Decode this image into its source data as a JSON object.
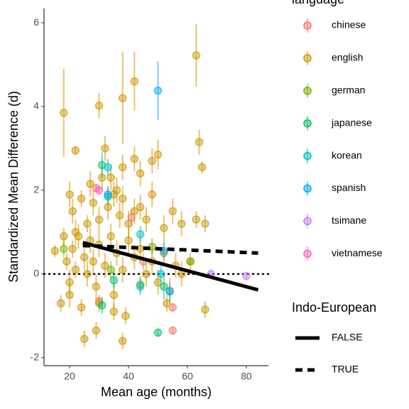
{
  "chart_data": {
    "type": "scatter",
    "x_label": "Mean age (months)",
    "y_label": "Standardized Mean Difference (d)",
    "xlim": [
      11.3,
      87.5
    ],
    "ylim": [
      -2.19,
      6.34
    ],
    "xticks": [
      20,
      40,
      60,
      80
    ],
    "yticks": [
      -2,
      0,
      2,
      4,
      6
    ],
    "hline": 0,
    "legend_title": "language",
    "series": [
      {
        "name": "chinese",
        "color": "#F8766D",
        "x": [
          29,
          41,
          55,
          55,
          30,
          45
        ],
        "values": [
          2.05,
          1.35,
          -1.35,
          -0.8,
          -0.65,
          0.3
        ],
        "errors": [
          0.1,
          0.2,
          0.1,
          0.1,
          0.1,
          0.2
        ]
      },
      {
        "name": "english",
        "color": "#CD9600",
        "x": [
          18,
          22,
          30,
          38,
          42,
          63,
          64,
          65,
          32,
          38,
          42,
          44,
          48,
          50,
          20,
          21,
          24,
          26,
          28,
          30,
          33,
          35,
          37,
          38,
          40,
          42,
          44,
          46,
          48,
          52,
          55,
          58,
          63,
          66,
          15,
          18,
          19,
          20,
          21,
          22,
          23,
          25,
          26,
          27,
          28,
          29,
          30,
          32,
          34,
          35,
          36,
          38,
          40,
          42,
          44,
          46,
          48,
          50,
          52,
          54,
          56,
          58,
          61,
          17,
          20,
          25,
          29,
          35,
          38,
          39,
          24,
          30,
          53,
          66,
          22,
          27,
          31,
          36,
          34
        ],
        "values": [
          3.85,
          2.95,
          4.02,
          4.2,
          4.6,
          5.22,
          3.15,
          2.55,
          3.0,
          2.55,
          2.75,
          2.4,
          2.7,
          2.85,
          1.9,
          1.5,
          1.8,
          1.2,
          1.7,
          1.3,
          1.6,
          1.9,
          1.4,
          1.8,
          1.2,
          1.5,
          1.6,
          1.3,
          1.9,
          1.1,
          1.5,
          1.2,
          1.3,
          1.2,
          0.55,
          0.9,
          0.3,
          -0.2,
          0.6,
          0.1,
          0.9,
          0.4,
          0.0,
          0.8,
          0.3,
          -0.3,
          0.7,
          0.2,
          0.9,
          -0.5,
          0.5,
          0.1,
          0.8,
          0.4,
          0.6,
          0.0,
          0.3,
          -0.2,
          0.5,
          -0.4,
          0.2,
          0.0,
          0.3,
          -0.7,
          -0.5,
          -1.55,
          -1.35,
          -0.9,
          -1.6,
          -1.0,
          -0.8,
          -0.7,
          -0.7,
          -0.85,
          1.0,
          2.15,
          2.3,
          2.0,
          2.3
        ],
        "errors": [
          1.05,
          0.1,
          0.3,
          1.1,
          0.7,
          0.75,
          0.3,
          0.15,
          0.3,
          0.3,
          0.3,
          0.3,
          0.3,
          0.35,
          0.3,
          0.3,
          0.2,
          0.2,
          0.3,
          0.3,
          0.3,
          0.3,
          0.3,
          0.3,
          0.3,
          0.3,
          0.3,
          0.3,
          0.3,
          0.3,
          0.3,
          0.3,
          0.2,
          0.2,
          0.15,
          0.2,
          0.2,
          0.3,
          0.2,
          0.2,
          0.3,
          0.3,
          0.3,
          0.3,
          0.3,
          0.3,
          0.3,
          0.3,
          0.3,
          0.3,
          0.3,
          0.3,
          0.3,
          0.3,
          0.3,
          0.3,
          0.3,
          0.3,
          0.3,
          0.3,
          0.3,
          0.3,
          0.2,
          0.2,
          0.3,
          0.2,
          0.2,
          0.2,
          0.2,
          0.2,
          0.2,
          0.2,
          0.2,
          0.2,
          0.3,
          0.3,
          0.3,
          0.3,
          0.3
        ]
      },
      {
        "name": "german",
        "color": "#7CAE00",
        "x": [
          18,
          34,
          44,
          61,
          48
        ],
        "values": [
          0.6,
          0.1,
          -0.25,
          0.3,
          0.65
        ],
        "errors": [
          0.2,
          0.2,
          0.2,
          0.1,
          0.2
        ]
      },
      {
        "name": "japanese",
        "color": "#00BE67",
        "x": [
          31,
          33,
          35,
          50,
          52,
          31
        ],
        "values": [
          2.6,
          1.85,
          -0.15,
          -1.4,
          -0.3,
          -0.75
        ],
        "errors": [
          0.3,
          0.2,
          0.2,
          0.1,
          0.3,
          0.2
        ]
      },
      {
        "name": "korean",
        "color": "#00BFC4",
        "x": [
          33,
          44,
          51,
          44
        ],
        "values": [
          2.55,
          0.95,
          0.0,
          -0.3
        ],
        "errors": [
          0.2,
          0.2,
          0.2,
          0.2
        ]
      },
      {
        "name": "spanish",
        "color": "#00A9FF",
        "x": [
          50,
          54,
          52,
          33
        ],
        "values": [
          4.38,
          -0.42,
          0.55,
          1.9
        ],
        "errors": [
          0.7,
          0.2,
          0.2,
          0.2
        ]
      },
      {
        "name": "tsimane",
        "color": "#C77CFF",
        "x": [
          68,
          80
        ],
        "values": [
          0.0,
          -0.05
        ],
        "errors": [
          0.1,
          0.1
        ]
      },
      {
        "name": "vietnamese",
        "color": "#FF61CC",
        "x": [
          30
        ],
        "values": [
          2.0
        ],
        "errors": [
          0.1
        ]
      }
    ],
    "lines_title": "Indo-European",
    "lines": [
      {
        "name": "FALSE",
        "dash": "solid",
        "color": "#000000",
        "x": [
          24.5,
          84
        ],
        "values": [
          0.75,
          -0.38
        ]
      },
      {
        "name": "TRUE",
        "dash": "dashed",
        "color": "#000000",
        "x": [
          24.5,
          84
        ],
        "values": [
          0.68,
          0.5
        ]
      }
    ]
  }
}
